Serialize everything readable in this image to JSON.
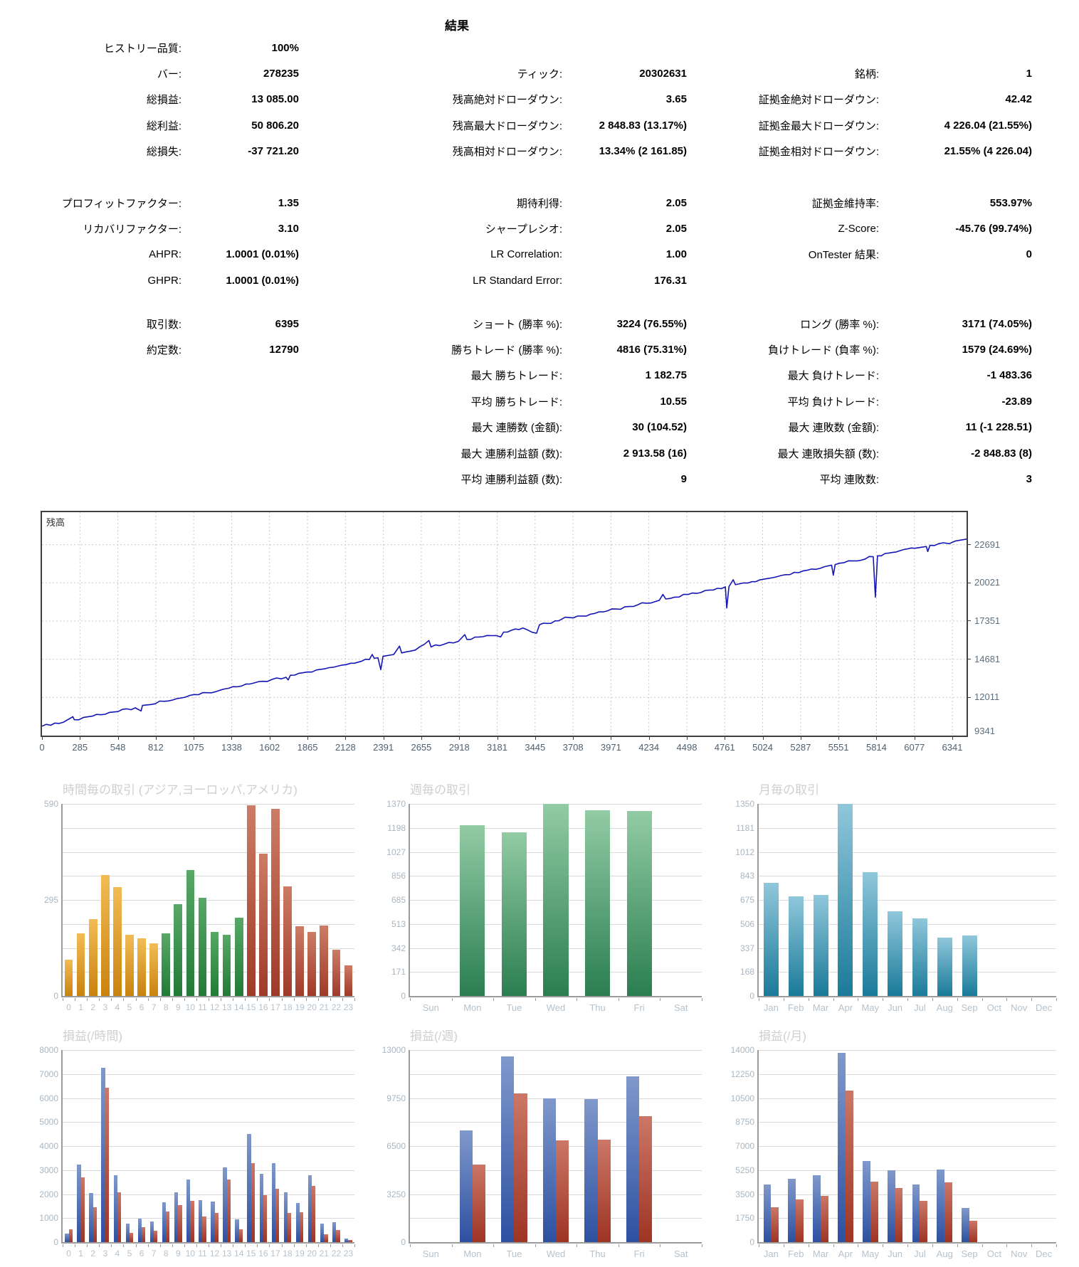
{
  "title": "結果",
  "stats": {
    "block_a": [
      [
        "ヒストリー品質:",
        "100%",
        "",
        "",
        "",
        ""
      ],
      [
        "バー:",
        "278235",
        "ティック:",
        "20302631",
        "銘柄:",
        "1"
      ],
      [
        "総損益:",
        "13 085.00",
        "残高絶対ドローダウン:",
        "3.65",
        "証拠金絶対ドローダウン:",
        "42.42"
      ],
      [
        "総利益:",
        "50 806.20",
        "残高最大ドローダウン:",
        "2 848.83 (13.17%)",
        "証拠金最大ドローダウン:",
        "4 226.04 (21.55%)"
      ],
      [
        "総損失:",
        "-37 721.20",
        "残高相対ドローダウン:",
        "13.34% (2 161.85)",
        "証拠金相対ドローダウン:",
        "21.55% (4 226.04)"
      ]
    ],
    "block_b": [
      [
        "プロフィットファクター:",
        "1.35",
        "期待利得:",
        "2.05",
        "証拠金維持率:",
        "553.97%"
      ],
      [
        "リカバリファクター:",
        "3.10",
        "シャープレシオ:",
        "2.05",
        "Z-Score:",
        "-45.76 (99.74%)"
      ],
      [
        "AHPR:",
        "1.0001 (0.01%)",
        "LR Correlation:",
        "1.00",
        "OnTester 結果:",
        "0"
      ],
      [
        "GHPR:",
        "1.0001 (0.01%)",
        "LR Standard Error:",
        "176.31",
        "",
        ""
      ]
    ],
    "block_c": [
      [
        "取引数:",
        "6395",
        "ショート (勝率 %):",
        "3224 (76.55%)",
        "ロング (勝率 %):",
        "3171 (74.05%)"
      ],
      [
        "約定数:",
        "12790",
        "勝ちトレード (勝率 %):",
        "4816 (75.31%)",
        "負けトレード (負率 %):",
        "1579 (24.69%)"
      ],
      [
        "",
        "",
        "最大 勝ちトレード:",
        "1 182.75",
        "最大 負けトレード:",
        "-1 483.36"
      ],
      [
        "",
        "",
        "平均 勝ちトレード:",
        "10.55",
        "平均 負けトレード:",
        "-23.89"
      ],
      [
        "",
        "",
        "最大 連勝数 (金額):",
        "30 (104.52)",
        "最大 連敗数 (金額):",
        "11 (-1 228.51)"
      ],
      [
        "",
        "",
        "最大 連勝利益額 (数):",
        "2 913.58 (16)",
        "最大 連敗損失額 (数):",
        "-2 848.83 (8)"
      ],
      [
        "",
        "",
        "平均 連勝利益額 (数):",
        "9",
        "平均 連敗数:",
        "3"
      ]
    ]
  },
  "balance_chart": {
    "type": "line",
    "label": "残高",
    "line_color": "#1515b5",
    "y_min": 9341,
    "y_top": 24960,
    "y_ticks": [
      12011,
      14681,
      17351,
      20021,
      22691
    ],
    "y_bottom_label": "9341",
    "x_ticks": [
      "0",
      "285",
      "548",
      "812",
      "1075",
      "1338",
      "1602",
      "1865",
      "2128",
      "2391",
      "2655",
      "2918",
      "3181",
      "3445",
      "3708",
      "3971",
      "4234",
      "4498",
      "4761",
      "5024",
      "5287",
      "5551",
      "5814",
      "6077",
      "6341"
    ],
    "x_data_max": 6440,
    "points": [
      [
        0,
        10000
      ],
      [
        150,
        10280
      ],
      [
        215,
        10660
      ],
      [
        225,
        10450
      ],
      [
        350,
        10700
      ],
      [
        500,
        10990
      ],
      [
        650,
        11280
      ],
      [
        690,
        11060
      ],
      [
        700,
        11450
      ],
      [
        850,
        11740
      ],
      [
        1000,
        12030
      ],
      [
        1150,
        12340
      ],
      [
        1300,
        12650
      ],
      [
        1450,
        12950
      ],
      [
        1600,
        13260
      ],
      [
        1700,
        13420
      ],
      [
        1715,
        13230
      ],
      [
        1730,
        13560
      ],
      [
        1850,
        13790
      ],
      [
        2000,
        14090
      ],
      [
        2150,
        14400
      ],
      [
        2280,
        14660
      ],
      [
        2300,
        15010
      ],
      [
        2315,
        14740
      ],
      [
        2340,
        14790
      ],
      [
        2360,
        13950
      ],
      [
        2375,
        14880
      ],
      [
        2450,
        15010
      ],
      [
        2490,
        15600
      ],
      [
        2505,
        15120
      ],
      [
        2600,
        15320
      ],
      [
        2695,
        15990
      ],
      [
        2710,
        15540
      ],
      [
        2800,
        15730
      ],
      [
        2900,
        15930
      ],
      [
        2945,
        16400
      ],
      [
        2960,
        16060
      ],
      [
        3100,
        16340
      ],
      [
        3195,
        16240
      ],
      [
        3215,
        16580
      ],
      [
        3350,
        16860
      ],
      [
        3445,
        16500
      ],
      [
        3465,
        17090
      ],
      [
        3600,
        17370
      ],
      [
        3645,
        17620
      ],
      [
        3700,
        17570
      ],
      [
        3850,
        17880
      ],
      [
        4000,
        18190
      ],
      [
        4150,
        18490
      ],
      [
        4300,
        18800
      ],
      [
        4325,
        19210
      ],
      [
        4345,
        18890
      ],
      [
        4500,
        19210
      ],
      [
        4650,
        19520
      ],
      [
        4760,
        19740
      ],
      [
        4770,
        18260
      ],
      [
        4785,
        19760
      ],
      [
        4815,
        20240
      ],
      [
        4830,
        19890
      ],
      [
        5000,
        20230
      ],
      [
        5150,
        20540
      ],
      [
        5300,
        20850
      ],
      [
        5450,
        21150
      ],
      [
        5500,
        21260
      ],
      [
        5512,
        20560
      ],
      [
        5525,
        21300
      ],
      [
        5650,
        21560
      ],
      [
        5790,
        21850
      ],
      [
        5805,
        19020
      ],
      [
        5820,
        21910
      ],
      [
        5950,
        22180
      ],
      [
        6080,
        22440
      ],
      [
        6160,
        22560
      ],
      [
        6170,
        22210
      ],
      [
        6185,
        22640
      ],
      [
        6280,
        22820
      ],
      [
        6320,
        22760
      ],
      [
        6360,
        22940
      ],
      [
        6440,
        23080
      ]
    ]
  },
  "palettes": {
    "asia": [
      "#f2bc55",
      "#c9820e"
    ],
    "europe": [
      "#58a868",
      "#217a35"
    ],
    "america": [
      "#cc7c66",
      "#a03a28"
    ],
    "green": [
      "#92cba4",
      "#2b7e51"
    ],
    "teal": [
      "#90c7db",
      "#1a7a99"
    ],
    "blue": [
      "#8099cc",
      "#2d50a0"
    ],
    "red": [
      "#cb7767",
      "#9e3424"
    ]
  },
  "charts": [
    {
      "type": "bar",
      "title": "時間毎の取引 (アジア,ヨーロッパ,アメリカ)",
      "ymax": 590,
      "y_labels": [
        "0",
        null,
        null,
        null,
        "295",
        null,
        null,
        null,
        "590"
      ],
      "categories": [
        "0",
        "1",
        "2",
        "3",
        "4",
        "5",
        "6",
        "7",
        "8",
        "9",
        "10",
        "11",
        "12",
        "13",
        "14",
        "15",
        "16",
        "17",
        "18",
        "19",
        "20",
        "21",
        "22",
        "23"
      ],
      "series": [
        {
          "name": "trades",
          "values": [
            112,
            192,
            237,
            372,
            335,
            188,
            178,
            162,
            192,
            281,
            386,
            302,
            197,
            188,
            241,
            585,
            436,
            574,
            337,
            215,
            197,
            216,
            143,
            93
          ]
        }
      ],
      "bar_palettes": [
        "asia",
        "asia",
        "asia",
        "asia",
        "asia",
        "asia",
        "asia",
        "asia",
        "europe",
        "europe",
        "europe",
        "europe",
        "europe",
        "europe",
        "europe",
        "america",
        "america",
        "america",
        "america",
        "america",
        "america",
        "america",
        "america",
        "america"
      ]
    },
    {
      "type": "bar",
      "title": "週毎の取引",
      "ymax": 1370,
      "y_labels": [
        "0",
        "171",
        "342",
        "513",
        "685",
        "856",
        "1027",
        "1198",
        "1370"
      ],
      "categories": [
        "Sun",
        "Mon",
        "Tue",
        "Wed",
        "Thu",
        "Fri",
        "Sat"
      ],
      "series": [
        {
          "name": "trades",
          "values": [
            0,
            1217,
            1169,
            1370,
            1323,
            1320,
            0
          ]
        }
      ],
      "bar_palettes": "green"
    },
    {
      "type": "bar",
      "title": "月毎の取引",
      "ymax": 1350,
      "y_labels": [
        "0",
        "168",
        "337",
        "506",
        "675",
        "843",
        "1012",
        "1181",
        "1350"
      ],
      "categories": [
        "Jan",
        "Feb",
        "Mar",
        "Apr",
        "May",
        "Jun",
        "Jul",
        "Aug",
        "Sep",
        "Oct",
        "Nov",
        "Dec"
      ],
      "series": [
        {
          "name": "trades",
          "values": [
            793,
            701,
            711,
            1350,
            869,
            593,
            547,
            410,
            427,
            0,
            0,
            0
          ]
        }
      ],
      "bar_palettes": "teal"
    },
    {
      "type": "bar",
      "title": "損益(/時間)",
      "ymax": 8000,
      "y_labels": [
        "0",
        "1000",
        "2000",
        "3000",
        "4000",
        "5000",
        "6000",
        "7000",
        "8000"
      ],
      "categories": [
        "0",
        "1",
        "2",
        "3",
        "4",
        "5",
        "6",
        "7",
        "8",
        "9",
        "10",
        "11",
        "12",
        "13",
        "14",
        "15",
        "16",
        "17",
        "18",
        "19",
        "20",
        "21",
        "22",
        "23"
      ],
      "series": [
        {
          "name": "profit",
          "palette": "blue",
          "values": [
            352,
            3219,
            2042,
            7274,
            2776,
            775,
            976,
            855,
            1660,
            2082,
            2616,
            1741,
            1700,
            3098,
            956,
            4507,
            2837,
            3300,
            2062,
            1620,
            2776,
            785,
            815,
            151
          ]
        },
        {
          "name": "loss",
          "palette": "red",
          "values": [
            533,
            2686,
            1459,
            6419,
            2062,
            372,
            624,
            483,
            1278,
            1529,
            1731,
            1056,
            1227,
            2596,
            523,
            3290,
            1941,
            2213,
            1227,
            1257,
            2334,
            332,
            503,
            80
          ]
        }
      ]
    },
    {
      "type": "bar",
      "title": "損益(/週)",
      "ymax": 13000,
      "y_labels": [
        "0",
        null,
        "3250",
        null,
        "6500",
        null,
        "9750",
        null,
        "13000"
      ],
      "categories": [
        "Sun",
        "Mon",
        "Tue",
        "Wed",
        "Thu",
        "Fri",
        "Sat"
      ],
      "series": [
        {
          "name": "profit",
          "palette": "blue",
          "values": [
            0,
            7550,
            12550,
            9730,
            9700,
            11230,
            0
          ]
        },
        {
          "name": "loss",
          "palette": "red",
          "values": [
            0,
            5230,
            10080,
            6870,
            6920,
            8500,
            0
          ]
        }
      ]
    },
    {
      "type": "bar",
      "title": "損益(/月)",
      "ymax": 14000,
      "y_labels": [
        "0",
        "1750",
        "3500",
        "5250",
        "7000",
        "8750",
        "10500",
        "12250",
        "14000"
      ],
      "categories": [
        "Jan",
        "Feb",
        "Mar",
        "Apr",
        "May",
        "Jun",
        "Jul",
        "Aug",
        "Sep",
        "Oct",
        "Nov",
        "Dec"
      ],
      "series": [
        {
          "name": "profit",
          "palette": "blue",
          "values": [
            4190,
            4610,
            4860,
            13770,
            5900,
            5230,
            4210,
            5270,
            2480,
            0,
            0,
            0
          ]
        },
        {
          "name": "loss",
          "palette": "red",
          "values": [
            2520,
            3120,
            3350,
            11040,
            4400,
            3950,
            2990,
            4370,
            1550,
            0,
            0,
            0
          ]
        }
      ]
    }
  ]
}
